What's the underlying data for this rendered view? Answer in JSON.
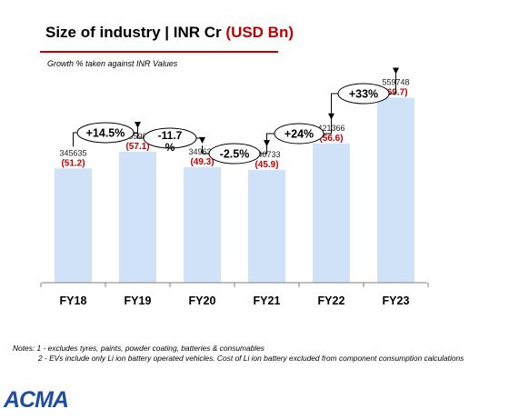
{
  "header": {
    "title": "Size of industry | INR Cr",
    "title_highlight": "(USD Bn)",
    "subtitle": "Growth % taken against INR Values"
  },
  "notes": {
    "line1": "Notes: 1 - excludes tyres, paints, powder coating, batteries & consumables",
    "line2": "2 - EVs include only Li ion battery operated vehicles. Cost of Li ion battery excluded from component consumption calculations"
  },
  "logo": {
    "text": "ACMA"
  },
  "colors": {
    "bar": "#cfe2f8",
    "usd_label": "#c00000",
    "accent": "#c00000",
    "logo": "#1f4e9c"
  },
  "chart_data": {
    "type": "bar",
    "categories": [
      "FY18",
      "FY19",
      "FY20",
      "FY21",
      "FY22",
      "FY23"
    ],
    "values": [
      345635,
      395902,
      349637,
      340733,
      421366,
      559748
    ],
    "usd_values": [
      51.2,
      57.1,
      49.3,
      45.9,
      56.6,
      69.7
    ],
    "usd_labels": [
      "(51.2)",
      "(57.1)",
      "(49.3)",
      "(45.9)",
      "(56.6)",
      "(69.7)"
    ],
    "ylim": [
      0,
      600000
    ],
    "growth": [
      {
        "from": "FY18",
        "to": "FY19",
        "label": "+14.5%"
      },
      {
        "from": "FY19",
        "to": "FY20",
        "label": "-11.7 %"
      },
      {
        "from": "FY20",
        "to": "FY21",
        "label": "-2.5%"
      },
      {
        "from": "FY21",
        "to": "FY22",
        "label": "+24%"
      },
      {
        "from": "FY22",
        "to": "FY23",
        "label": "+33%"
      }
    ],
    "title": "",
    "xlabel": "",
    "ylabel": "",
    "grid": false,
    "legend": "none"
  }
}
